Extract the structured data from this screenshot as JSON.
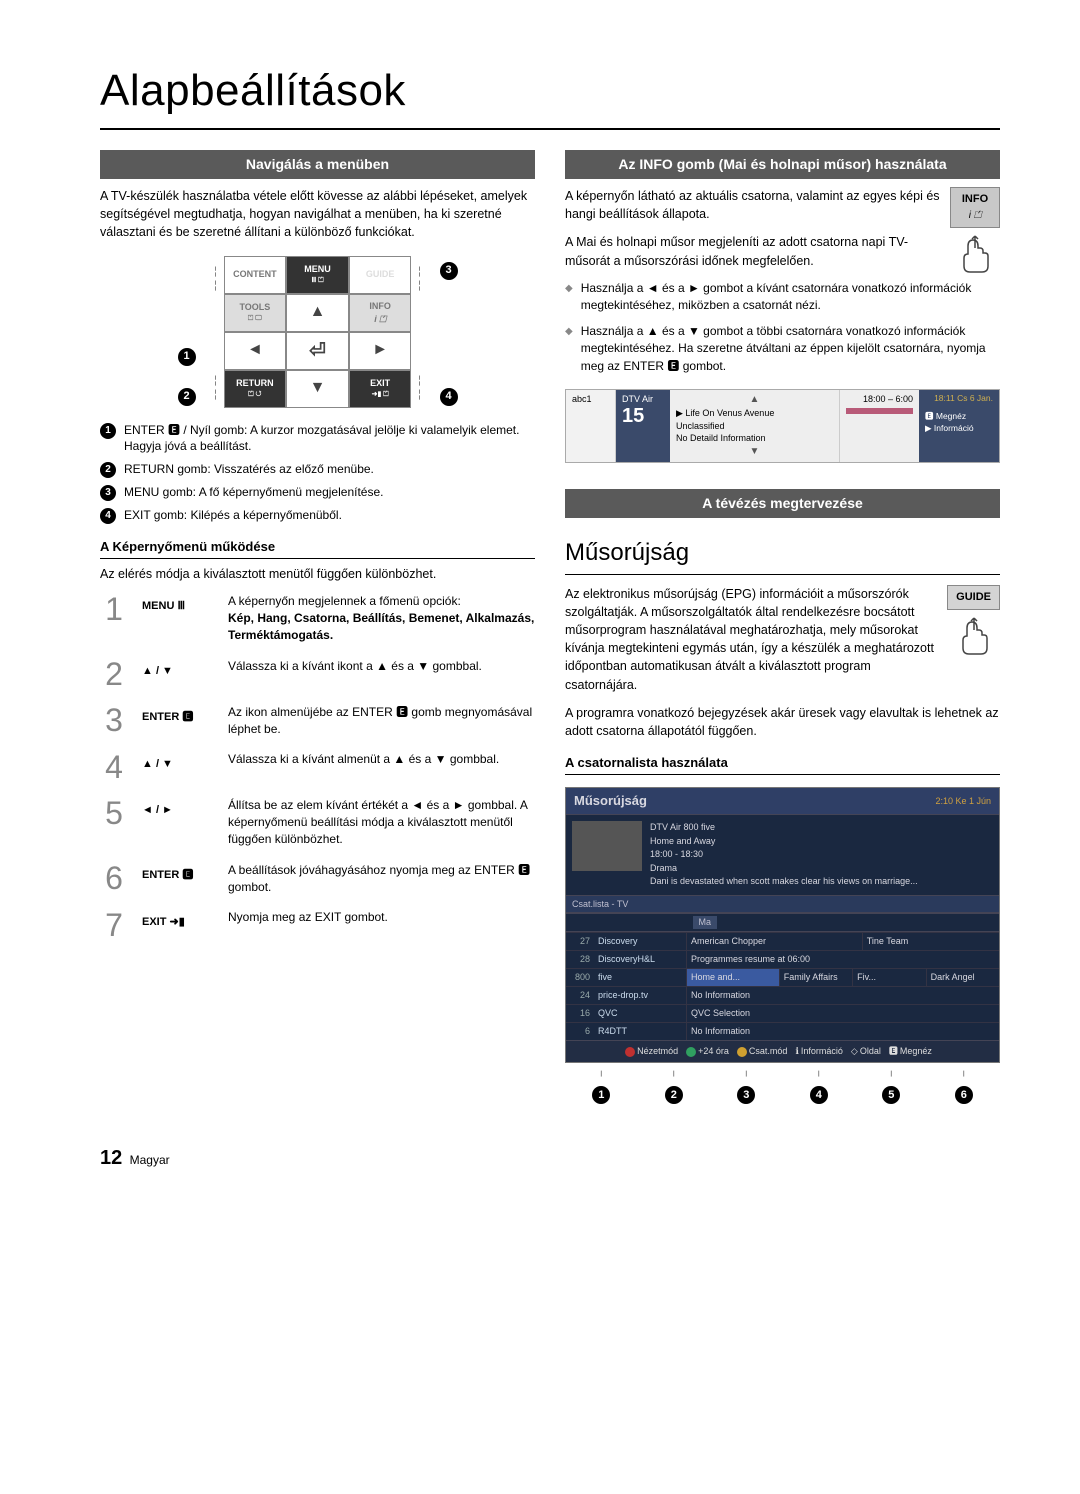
{
  "page_title": "Alapbeállítások",
  "footer_page": "12",
  "footer_lang": "Magyar",
  "left": {
    "section_bar": "Navigálás a menüben",
    "intro": "A TV-készülék használatba vétele előtt kövesse az alábbi lépéseket, amelyek segítségével megtudhatja, hogyan navigálhat a menüben, ha ki szeretné választani és be szeretné állítani a különböző funkciókat.",
    "remote": {
      "content": "CONTENT",
      "menu": "MENU",
      "guide": "GUIDE",
      "tools": "TOOLS",
      "info": "INFO",
      "return": "RETURN",
      "exit": "EXIT"
    },
    "numbered": [
      "ENTER 🅴 / Nyíl gomb: A kurzor mozgatásával jelölje ki valamelyik elemet. Hagyja jóvá a beállítást.",
      "RETURN gomb: Visszatérés az előző menübe.",
      "MENU gomb: A fő képernyőmenü megjelenítése.",
      "EXIT gomb: Kilépés a képernyőmenüből."
    ],
    "subhead": "A Képernyőmenü működése",
    "subhead_text": "Az elérés módja a kiválasztott menütől függően különbözhet.",
    "steps": [
      {
        "n": "1",
        "key": "MENU Ⅲ",
        "desc": "A képernyőn megjelennek a főmenü opciók:",
        "desc_bold": "Kép, Hang, Csatorna, Beállítás, Bemenet, Alkalmazás, Terméktámogatás."
      },
      {
        "n": "2",
        "key": "▲ / ▼",
        "desc": "Válassza ki a kívánt ikont a ▲ és a ▼ gombbal."
      },
      {
        "n": "3",
        "key": "ENTER 🅴",
        "desc": "Az ikon almenüjébe az ENTER 🅴 gomb megnyomásával léphet be."
      },
      {
        "n": "4",
        "key": "▲ / ▼",
        "desc": "Válassza ki a kívánt almenüt a ▲ és a ▼ gombbal."
      },
      {
        "n": "5",
        "key": "◄ / ►",
        "desc": "Állítsa be az elem kívánt értékét a ◄ és a ► gombbal. A képernyőmenü beállítási módja a kiválasztott menütől függően különbözhet."
      },
      {
        "n": "6",
        "key": "ENTER 🅴",
        "desc": "A beállítások jóváhagyásához nyomja meg az ENTER 🅴 gombot."
      },
      {
        "n": "7",
        "key": "EXIT ➜▮",
        "desc": "Nyomja meg az EXIT gombot."
      }
    ]
  },
  "right": {
    "section_bar1": "Az INFO gomb (Mai és holnapi műsor) használata",
    "info_btn": "INFO",
    "p1": "A képernyőn látható az aktuális csatorna, valamint az egyes képi és hangi beállítások állapota.",
    "p2": "A Mai és holnapi műsor megjeleníti az adott csatorna napi TV-műsorát a műsorszórási időnek megfelelően.",
    "bullets": [
      "Használja a ◄ és a ► gombot a kívánt csatornára vonatkozó információk megtekintéséhez, miközben a csatornát nézi.",
      "Használja a ▲ és a ▼ gombot a többi csatornára vonatkozó információk megtekintéséhez. Ha szeretne átváltani az éppen kijelölt csatornára, nyomja meg az ENTER 🅴 gombot."
    ],
    "strip": {
      "abc": "abc1",
      "dtv": "DTV Air",
      "num": "15",
      "prog": "Life On Venus Avenue",
      "unc": "Unclassified",
      "nodet": "No Detaild Information",
      "time": "18:00 – 6:00",
      "clock": "18:11 Cs 6 Jan.",
      "watch": "Megnéz",
      "info": "Információ"
    },
    "section_bar2": "A tévézés megtervezése",
    "h2": "Műsorújság",
    "guide_btn": "GUIDE",
    "g_p1": "Az elektronikus műsorújság (EPG) információit a műsorszórók szolgáltatják. A műsorszolgáltatók által rendelkezésre bocsátott műsorprogram használatával meghatározhatja, mely műsorokat kívánja megtekinteni egymás után, így a készülék a meghatározott időpontban automatikusan átvált a kiválasztott program csatornájára.",
    "g_p2": "A programra vonatkozó bejegyzések akár üresek vagy elavultak is lehetnek az adott csatorna állapotától függően.",
    "g_sub": "A csatornalista használata",
    "guide_box": {
      "title": "Műsorújság",
      "clock": "2:10 Ke 1 Jún",
      "header": {
        "ch": "DTV Air 800 five",
        "show": "Home and Away",
        "time": "18:00 - 18:30",
        "genre": "Drama",
        "desc": "Dani is devastated when scott makes clear his views on marriage..."
      },
      "tab": "Csat.lista - TV",
      "day": "Ma",
      "channels": [
        {
          "num": "27",
          "name": "Discovery"
        },
        {
          "num": "28",
          "name": "DiscoveryH&L"
        },
        {
          "num": "800",
          "name": "five"
        },
        {
          "num": "24",
          "name": "price-drop.tv"
        },
        {
          "num": "16",
          "name": "QVC"
        },
        {
          "num": "6",
          "name": "R4DTT"
        }
      ],
      "programs": [
        [
          "American Chopper",
          "Tine Team"
        ],
        [
          "Programmes resume at 06:00"
        ],
        [
          "Home and...",
          "Family Affairs",
          "Fiv...",
          "Dark Angel"
        ],
        [
          "No Information"
        ],
        [
          "QVC Selection"
        ],
        [
          "No Information"
        ]
      ],
      "footer_items": [
        {
          "color": "#c03030",
          "label": "Nézetmód"
        },
        {
          "color": "#30a060",
          "label": "+24 óra"
        },
        {
          "color": "#d0a030",
          "label": "Csat.mód"
        },
        {
          "icon": "ℹ",
          "label": "Információ"
        },
        {
          "icon": "◇",
          "label": "Oldal"
        },
        {
          "icon": "🅴",
          "label": "Megnéz"
        }
      ]
    },
    "callout_count": 6
  },
  "colors": {
    "bar_bg": "#5a5a5a",
    "guide_bg": "#1a2840",
    "guide_title_bg": "#2f3f66"
  }
}
